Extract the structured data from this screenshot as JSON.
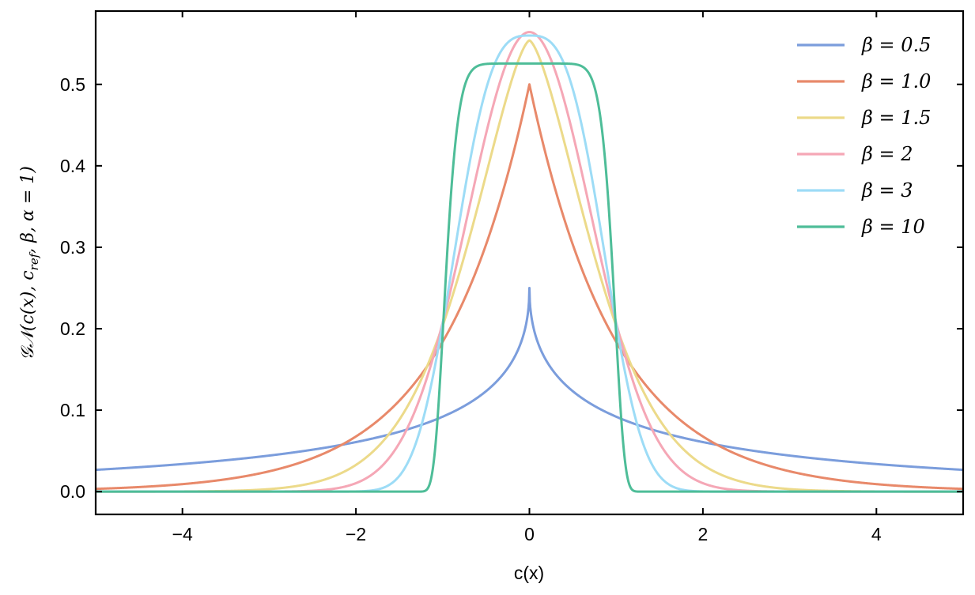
{
  "chart_data": {
    "type": "line",
    "title": "",
    "xlabel": "c(x)",
    "ylabel": "𝒢𝒩(c(x), c_ref, β, α = 1)",
    "ylabel_parts": {
      "main": "𝒢𝒩(c(x), c",
      "sub": "ref",
      "rest": ", β, α = 1)"
    },
    "xlim": [
      -5,
      5
    ],
    "ylim": [
      -0.028,
      0.59
    ],
    "xticks": [
      -4,
      -2,
      0,
      2,
      4
    ],
    "xtick_labels": [
      "−4",
      "−2",
      "0",
      "2",
      "4"
    ],
    "yticks": [
      0.0,
      0.1,
      0.2,
      0.3,
      0.4,
      0.5
    ],
    "ytick_labels": [
      "0.0",
      "0.1",
      "0.2",
      "0.3",
      "0.4",
      "0.5"
    ],
    "grid": false,
    "legend_position": "top-right",
    "alpha": 1,
    "x_range": [
      -5,
      5
    ],
    "series": [
      {
        "name": "β = 0.5",
        "beta": 0.5,
        "color": "#7b9ddc",
        "peak": 0.233
      },
      {
        "name": "β = 1.0",
        "beta": 1.0,
        "color": "#e8896a",
        "peak": 0.5
      },
      {
        "name": "β = 1.5",
        "beta": 1.5,
        "color": "#ecda8a",
        "peak": 0.554
      },
      {
        "name": "β = 2",
        "beta": 2,
        "color": "#f5a7b6",
        "peak": 0.564
      },
      {
        "name": "β = 3",
        "beta": 3,
        "color": "#9ddcf6",
        "peak": 0.56
      },
      {
        "name": "β = 10",
        "beta": 10,
        "color": "#4ebd98",
        "peak": 0.525
      }
    ]
  }
}
